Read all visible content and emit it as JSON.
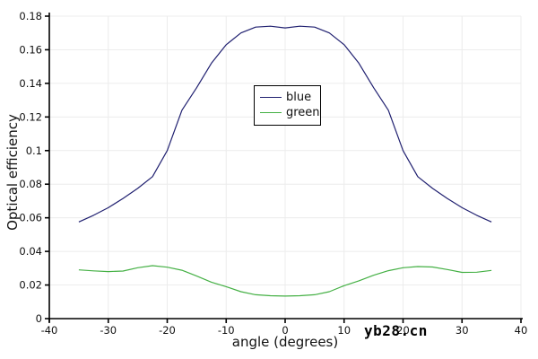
{
  "figure": {
    "background": "#ffffff"
  },
  "legend": {
    "entries": [
      {
        "label": "blue",
        "color": "#202070"
      },
      {
        "label": "green",
        "color": "#44b044"
      }
    ]
  },
  "watermark": {
    "text": "yb28.cn",
    "color": "#000000"
  },
  "chart_data": {
    "type": "line",
    "title": "",
    "xlabel": "angle (degrees)",
    "ylabel": "Optical efficiency",
    "xlim": [
      -40,
      40
    ],
    "ylim": [
      0,
      0.18
    ],
    "grid": true,
    "grid_color": "#ececec",
    "axis_color": "#000000",
    "legend_position": "upper-center-inside",
    "x_ticks": [
      -40,
      -30,
      -20,
      -10,
      0,
      10,
      20,
      30,
      40
    ],
    "x_tick_labels": [
      "-40",
      "-30",
      "-20",
      "-10",
      "0",
      "10",
      "20",
      "30",
      "40"
    ],
    "y_ticks": [
      0,
      0.02,
      0.04,
      0.06,
      0.08,
      0.1,
      0.12,
      0.14,
      0.16,
      0.18
    ],
    "y_tick_labels": [
      "0",
      "0.02",
      "0.04",
      "0.06",
      "0.08",
      "0.1",
      "0.12",
      "0.14",
      "0.16",
      "0.18"
    ],
    "x": [
      -35,
      -32.5,
      -30,
      -27.5,
      -25,
      -22.5,
      -20,
      -17.5,
      -15,
      -12.5,
      -10,
      -7.5,
      -5,
      -2.5,
      0,
      2.5,
      5,
      7.5,
      10,
      12.5,
      15,
      17.5,
      20,
      22.5,
      25,
      27.5,
      30,
      32.5,
      35
    ],
    "series": [
      {
        "name": "blue",
        "color": "#202070",
        "values": [
          0.0575,
          0.0615,
          0.066,
          0.0715,
          0.0775,
          0.0845,
          0.1,
          0.124,
          0.1375,
          0.152,
          0.163,
          0.17,
          0.1735,
          0.174,
          0.173,
          0.174,
          0.1735,
          0.17,
          0.163,
          0.152,
          0.1375,
          0.124,
          0.1,
          0.0845,
          0.0775,
          0.0715,
          0.066,
          0.0615,
          0.0575
        ]
      },
      {
        "name": "green",
        "color": "#44b044",
        "values": [
          0.029,
          0.0284,
          0.028,
          0.0283,
          0.0303,
          0.0315,
          0.0306,
          0.0288,
          0.0253,
          0.0217,
          0.019,
          0.016,
          0.0142,
          0.0136,
          0.0134,
          0.0136,
          0.0142,
          0.016,
          0.0196,
          0.0225,
          0.0258,
          0.0285,
          0.0303,
          0.031,
          0.0307,
          0.0292,
          0.0275,
          0.0276,
          0.0287
        ]
      }
    ]
  }
}
